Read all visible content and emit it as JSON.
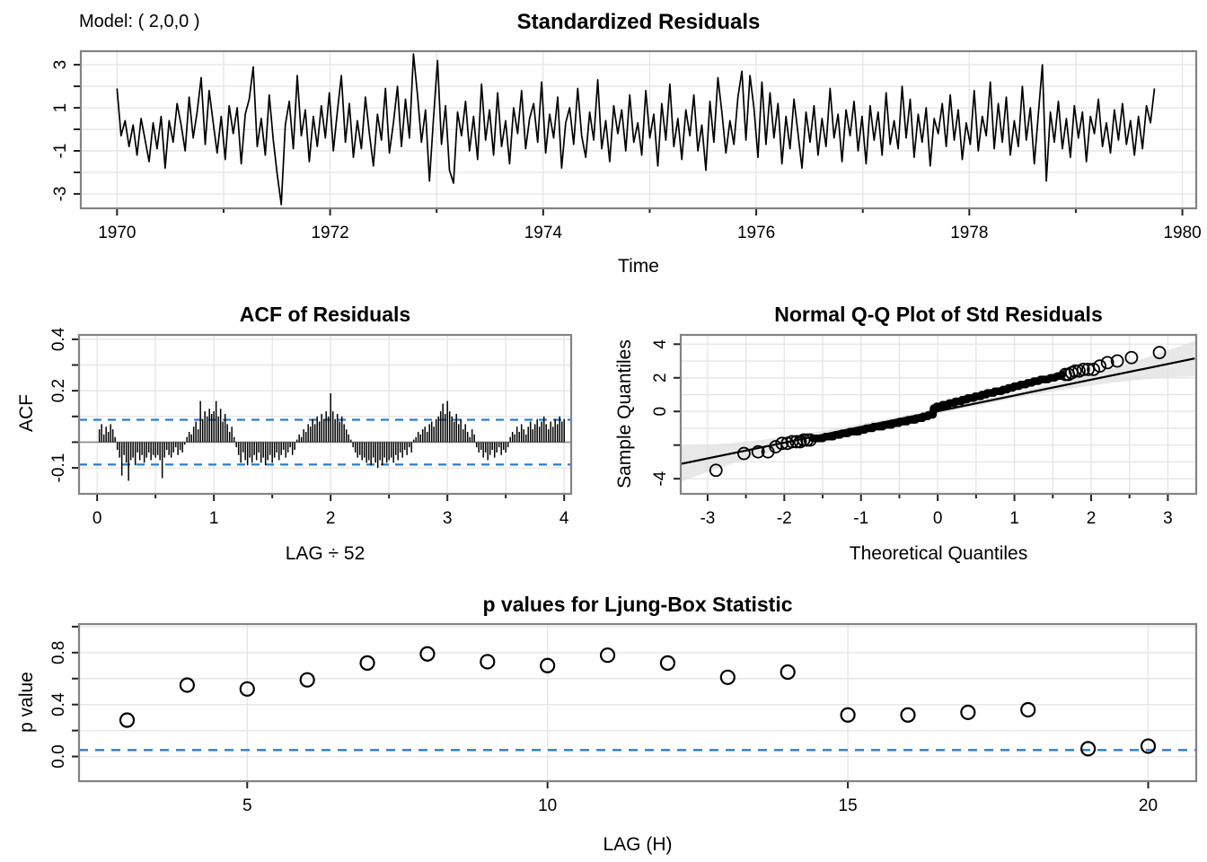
{
  "figure": {
    "corner_label": "Model: ( 2,0,0 )"
  },
  "colors": {
    "series_black": "#000000",
    "blue_dashed": "#2B7CCD",
    "grid": "#E6E6E6",
    "panel_border": "#838383",
    "zero_line": "#8A8A8A",
    "qq_band": "#E0E0E0",
    "background": "#FFFFFF"
  },
  "chart_data": [
    {
      "id": "residuals",
      "type": "line",
      "title": "Standardized Residuals",
      "corner_label": "Model: ( 2,0,0 )",
      "xlabel": "Time",
      "ylabel": "",
      "xlim": [
        1969.66,
        1980.13
      ],
      "ylim": [
        -3.67,
        3.63
      ],
      "x_ticks": [
        1970,
        1971,
        1972,
        1973,
        1974,
        1975,
        1976,
        1977,
        1978,
        1979,
        1980
      ],
      "x_tick_labels": [
        "1970",
        "",
        "1972",
        "",
        "1974",
        "",
        "1976",
        "",
        "1978",
        "",
        "1980"
      ],
      "y_ticks": [
        -3,
        -2,
        -1,
        0,
        1,
        2,
        3
      ],
      "y_tick_labels": [
        "-3",
        "",
        "-1",
        "",
        "1",
        "",
        "3"
      ],
      "x_start": 1970.0,
      "x_step": 0.0376,
      "values": [
        1.9,
        -0.3,
        0.4,
        -0.8,
        0.2,
        -1.2,
        0.5,
        -0.5,
        -1.5,
        0.3,
        -0.9,
        0.6,
        -1.8,
        0.4,
        -0.6,
        1.2,
        0.2,
        -1.0,
        1.5,
        -0.4,
        0.8,
        2.4,
        -0.7,
        1.8,
        0.3,
        -1.1,
        0.6,
        -1.4,
        1.1,
        -0.2,
        1.0,
        -1.6,
        0.7,
        1.4,
        2.9,
        -0.8,
        0.5,
        -1.2,
        1.6,
        -0.5,
        -2.1,
        -3.5,
        0.2,
        1.3,
        -0.9,
        2.5,
        -0.3,
        0.9,
        -1.5,
        0.6,
        -0.8,
        1.1,
        -0.4,
        1.7,
        -1.0,
        0.8,
        2.5,
        -0.6,
        1.2,
        -1.3,
        0.4,
        -0.9,
        1.5,
        -0.2,
        -1.7,
        0.7,
        -0.5,
        1.9,
        -1.1,
        0.3,
        2.0,
        -0.8,
        1.4,
        -0.4,
        3.5,
        1.6,
        -0.6,
        0.9,
        -2.4,
        0.5,
        3.2,
        -0.7,
        1.1,
        -1.9,
        -2.5,
        0.8,
        -0.3,
        1.3,
        -1.0,
        0.6,
        -1.4,
        2.1,
        -0.5,
        0.9,
        -1.2,
        1.7,
        -0.8,
        0.4,
        -1.6,
        1.0,
        -0.2,
        1.8,
        -0.9,
        0.5,
        1.2,
        -0.6,
        2.2,
        -1.1,
        0.7,
        -0.4,
        1.5,
        -1.8,
        0.3,
        1.0,
        -0.7,
        1.9,
        -0.3,
        -1.3,
        0.8,
        -0.5,
        2.3,
        -0.9,
        0.4,
        -1.5,
        1.1,
        -0.2,
        0.9,
        -1.0,
        1.6,
        -0.6,
        0.3,
        -1.2,
        1.8,
        -0.4,
        0.7,
        -1.7,
        1.2,
        -0.5,
        2.1,
        -0.8,
        0.5,
        -1.4,
        0.9,
        -0.3,
        1.6,
        -1.0,
        0.2,
        -1.9,
        1.3,
        -0.6,
        2.4,
        0.8,
        -1.1,
        0.4,
        -0.7,
        1.5,
        2.7,
        -0.5,
        2.5,
        1.0,
        -1.3,
        2.2,
        -0.7,
        1.7,
        -0.4,
        1.2,
        -1.6,
        0.6,
        -0.9,
        1.4,
        -0.2,
        -1.8,
        0.8,
        -0.6,
        1.1,
        -1.2,
        0.5,
        -0.8,
        1.9,
        -0.4,
        0.7,
        -1.5,
        0.9,
        -0.3,
        1.3,
        -1.0,
        0.6,
        -1.6,
        1.1,
        -0.5,
        0.8,
        -1.2,
        1.7,
        -0.7,
        0.4,
        -0.9,
        2.0,
        -0.4,
        1.4,
        -1.3,
        0.7,
        -0.6,
        1.0,
        -1.7,
        0.5,
        -0.2,
        1.2,
        -0.8,
        1.6,
        -0.5,
        0.9,
        -1.4,
        0.3,
        -0.7,
        1.8,
        -1.0,
        0.6,
        -0.3,
        2.2,
        -0.9,
        1.2,
        -0.6,
        1.5,
        -1.2,
        0.4,
        -0.8,
        2.0,
        -0.5,
        1.0,
        -1.6,
        0.7,
        3.0,
        -2.4,
        0.8,
        -0.6,
        1.3,
        -0.9,
        0.5,
        -1.3,
        1.1,
        -0.4,
        0.8,
        -1.5,
        0.6,
        -0.2,
        1.4,
        -0.8,
        0.3,
        -1.1,
        0.9,
        -0.5,
        1.2,
        -0.7,
        0.4,
        -1.2,
        0.6,
        -0.9,
        1.1,
        0.3,
        1.9
      ]
    },
    {
      "id": "acf",
      "type": "bar",
      "title": "ACF of Residuals",
      "xlabel": "LAG ÷ 52",
      "ylabel": "ACF",
      "xlim": [
        -0.155,
        4.06
      ],
      "ylim": [
        -0.201,
        0.417
      ],
      "x_ticks": [
        0,
        0.5,
        1,
        1.5,
        2,
        2.5,
        3,
        3.5,
        4
      ],
      "x_tick_labels": [
        "0",
        "",
        "1",
        "",
        "2",
        "",
        "3",
        "",
        "4"
      ],
      "y_ticks": [
        -0.1,
        0,
        0.1,
        0.2,
        0.3,
        0.4
      ],
      "y_tick_labels": [
        "-0.1",
        "",
        "",
        "0.2",
        "",
        "0.4"
      ],
      "lag_divisor": 52,
      "conf_band": 0.087,
      "values": [
        0.05,
        0.07,
        0.03,
        0.06,
        0.04,
        0.07,
        0.05,
        0.02,
        -0.03,
        -0.06,
        -0.13,
        -0.05,
        -0.08,
        -0.15,
        -0.07,
        -0.06,
        -0.09,
        -0.04,
        -0.07,
        -0.05,
        -0.08,
        -0.06,
        -0.04,
        -0.07,
        -0.05,
        -0.06,
        -0.05,
        -0.07,
        -0.14,
        -0.06,
        -0.03,
        -0.05,
        -0.06,
        -0.04,
        -0.02,
        -0.05,
        -0.03,
        -0.04,
        -0.01,
        0.02,
        0.04,
        0.03,
        0.06,
        0.08,
        0.05,
        0.16,
        0.09,
        0.12,
        0.1,
        0.13,
        0.11,
        0.12,
        0.16,
        0.1,
        0.13,
        0.08,
        0.11,
        0.07,
        0.04,
        0.06,
        0.02,
        -0.02,
        -0.05,
        -0.08,
        -0.04,
        -0.07,
        -0.09,
        -0.06,
        -0.08,
        -0.05,
        -0.07,
        -0.04,
        -0.08,
        -0.06,
        -0.09,
        -0.07,
        -0.05,
        -0.08,
        -0.06,
        -0.04,
        -0.07,
        -0.05,
        -0.03,
        -0.06,
        -0.04,
        -0.02,
        -0.05,
        -0.03,
        0.01,
        0.03,
        0.02,
        0.05,
        0.04,
        0.07,
        0.06,
        0.09,
        0.07,
        0.1,
        0.08,
        0.11,
        0.09,
        0.12,
        0.1,
        0.19,
        0.12,
        0.09,
        0.11,
        0.08,
        0.1,
        0.07,
        0.05,
        0.03,
        0.01,
        -0.02,
        -0.04,
        -0.06,
        -0.05,
        -0.07,
        -0.06,
        -0.08,
        -0.07,
        -0.09,
        -0.06,
        -0.08,
        -0.1,
        -0.07,
        -0.09,
        -0.06,
        -0.08,
        -0.07,
        -0.06,
        -0.08,
        -0.05,
        -0.07,
        -0.04,
        -0.06,
        -0.03,
        -0.05,
        -0.02,
        -0.04,
        0.01,
        0.02,
        0.04,
        0.03,
        0.05,
        0.06,
        0.04,
        0.07,
        0.08,
        0.06,
        0.09,
        0.1,
        0.12,
        0.15,
        0.11,
        0.16,
        0.12,
        0.1,
        0.08,
        0.11,
        0.07,
        0.09,
        0.05,
        0.07,
        0.04,
        0.02,
        0.05,
        0.03,
        -0.02,
        -0.04,
        -0.03,
        -0.06,
        -0.04,
        -0.07,
        -0.05,
        -0.03,
        -0.06,
        -0.04,
        -0.02,
        -0.05,
        -0.03,
        -0.04,
        -0.02,
        0.02,
        0.04,
        0.03,
        0.06,
        0.04,
        0.07,
        0.05,
        0.03,
        0.06,
        0.08,
        0.05,
        0.07,
        0.09,
        0.06,
        0.08,
        0.1,
        0.07,
        0.05,
        0.08,
        0.06,
        0.09,
        0.07,
        0.1,
        0.08,
        0.09
      ]
    },
    {
      "id": "qq",
      "type": "scatter",
      "title": "Normal Q-Q Plot of Std Residuals",
      "xlabel": "Theoretical Quantiles",
      "ylabel": "Sample Quantiles",
      "xlim": [
        -3.35,
        3.37
      ],
      "ylim": [
        -4.9,
        4.55
      ],
      "x_ticks": [
        -3,
        -2.5,
        -2,
        -1.5,
        -1,
        -0.5,
        0,
        0.5,
        1,
        1.5,
        2,
        2.5,
        3
      ],
      "x_tick_labels": [
        "-3",
        "",
        "-2",
        "",
        "-1",
        "",
        "0",
        "",
        "1",
        "",
        "2",
        "",
        "3"
      ],
      "y_ticks": [
        -4,
        -2,
        0,
        2,
        4
      ],
      "y_tick_labels": [
        "-4",
        "",
        "0",
        "2",
        "4"
      ],
      "grid_y": [
        -4,
        -3,
        -2,
        -1,
        0,
        1,
        2,
        3,
        4
      ],
      "ref_line": {
        "x": [
          -3.35,
          3.35
        ],
        "y": [
          -3.12,
          3.15
        ]
      }
    },
    {
      "id": "ljung_box",
      "type": "scatter",
      "title": "p values for Ljung-Box Statistic",
      "xlabel": "LAG (H)",
      "ylabel": "p value",
      "xlim": [
        2.2,
        20.8
      ],
      "ylim": [
        -0.19,
        1.02
      ],
      "x_ticks": [
        5,
        10,
        15,
        20
      ],
      "x_tick_labels": [
        "5",
        "10",
        "15",
        "20"
      ],
      "y_ticks": [
        0,
        0.2,
        0.4,
        0.6,
        0.8,
        1.0
      ],
      "y_tick_labels": [
        "0.0",
        "",
        "0.4",
        "",
        "0.8",
        ""
      ],
      "threshold": 0.05,
      "lags": [
        3,
        4,
        5,
        6,
        7,
        8,
        9,
        10,
        11,
        12,
        13,
        14,
        15,
        16,
        17,
        18,
        19,
        20
      ],
      "pvalues": [
        0.28,
        0.55,
        0.52,
        0.59,
        0.72,
        0.79,
        0.73,
        0.7,
        0.78,
        0.72,
        0.61,
        0.65,
        0.32,
        0.32,
        0.34,
        0.36,
        0.06,
        0.08
      ]
    }
  ]
}
